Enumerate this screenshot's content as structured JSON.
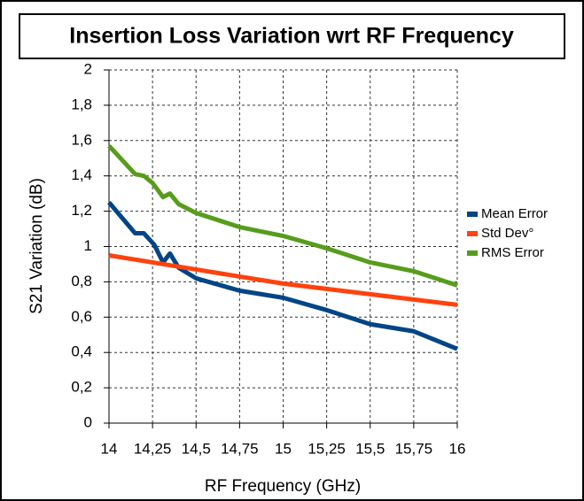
{
  "chart_data": {
    "type": "line",
    "title": "Insertion Loss Variation wrt RF Frequency",
    "x_label": "RF Frequency (GHz)",
    "y_label": "S21 Variation (dB)",
    "xlim": [
      14,
      16
    ],
    "xticks": [
      14,
      {
        "value": 14.25,
        "label": "14,25"
      },
      {
        "value": 14.5,
        "label": "14,5"
      },
      {
        "value": 14.75,
        "label": "14,75"
      },
      15,
      {
        "value": 15.25,
        "label": "15,25"
      },
      {
        "value": 15.5,
        "label": "15,5"
      },
      {
        "value": 15.75,
        "label": "15,75"
      },
      16
    ],
    "ylim": [
      0,
      2
    ],
    "yticks": [
      0,
      {
        "value": 0.2,
        "label": "0,2"
      },
      {
        "value": 0.4,
        "label": "0,4"
      },
      {
        "value": 0.6,
        "label": "0,6"
      },
      {
        "value": 0.8,
        "label": "0,8"
      },
      1,
      {
        "value": 1.2,
        "label": "1,2"
      },
      {
        "value": 1.4,
        "label": "1,4"
      },
      {
        "value": 1.6,
        "label": "1,6"
      },
      {
        "value": 1.8,
        "label": "1,8"
      },
      2
    ],
    "grid": true,
    "legend": "right",
    "series": [
      {
        "name": "Mean Error",
        "color": "#004586",
        "x": [
          14,
          14.15,
          14.2,
          14.26,
          14.31,
          14.35,
          14.4,
          14.5,
          14.75,
          15,
          15.25,
          15.5,
          15.75,
          16
        ],
        "values": [
          1.25,
          1.075,
          1.075,
          1.01,
          0.91,
          0.96,
          0.88,
          0.82,
          0.75,
          0.71,
          0.64,
          0.56,
          0.52,
          0.42
        ]
      },
      {
        "name": "Std Dev°",
        "color": "#ff420e",
        "x": [
          14,
          14.25,
          14.5,
          14.75,
          15,
          15.25,
          15.5,
          15.75,
          16
        ],
        "values": [
          0.95,
          0.91,
          0.87,
          0.83,
          0.79,
          0.76,
          0.73,
          0.7,
          0.67
        ]
      },
      {
        "name": "RMS Error",
        "color": "#579d1c",
        "x": [
          14,
          14.15,
          14.2,
          14.25,
          14.31,
          14.35,
          14.4,
          14.5,
          14.75,
          15,
          15.25,
          15.5,
          15.75,
          16
        ],
        "values": [
          1.57,
          1.41,
          1.4,
          1.36,
          1.28,
          1.3,
          1.24,
          1.19,
          1.11,
          1.06,
          0.99,
          0.91,
          0.86,
          0.78
        ]
      }
    ]
  }
}
